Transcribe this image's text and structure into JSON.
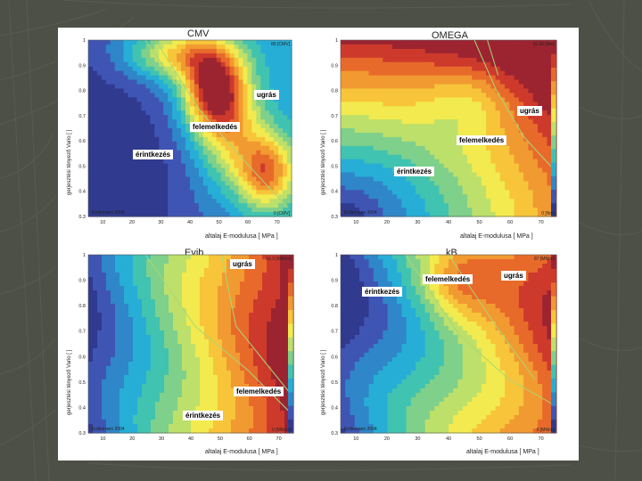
{
  "colors": {
    "scale": [
      "#303a8e",
      "#3f55b4",
      "#2f86c8",
      "#27aed6",
      "#40c3b0",
      "#7fd08a",
      "#bde06a",
      "#f2ea4e",
      "#f7c43a",
      "#f19a31",
      "#e86a2a",
      "#cd3a2c",
      "#9c2430"
    ]
  },
  "chart_data": [
    {
      "type": "heatmap",
      "title": "CMV",
      "xlabel": "altalaj E-modulusa  [ MPa ]",
      "ylabel": "gerjesztési tényező  Vario  [ ]",
      "x_ticks": [
        "10",
        "20",
        "30",
        "40",
        "50",
        "60",
        "70"
      ],
      "y_ticks": [
        "0.3",
        "0.4",
        "0.5",
        "0.6",
        "0.7",
        "0.8",
        "0.9",
        "1"
      ],
      "xlim": [
        5,
        75
      ],
      "ylim": [
        0.3,
        1.0
      ],
      "corner_top": "89 [CMV]",
      "corner_bottom": "0 [CMV]",
      "copyright": "Erdlemann 2004",
      "annotations": [
        "ugrás",
        "felemelkedés",
        "érintkezés"
      ],
      "pattern": "cmv"
    },
    {
      "type": "heatmap",
      "title": "OMEGA",
      "xlabel": "altalaj E-modulusa  [ MPa ]",
      "ylabel": "gerjesztési tényező  Vario  [ ]",
      "x_ticks": [
        "10",
        "20",
        "30",
        "40",
        "50",
        "60",
        "70"
      ],
      "y_ticks": [
        "0.3",
        "0.4",
        "0.5",
        "0.6",
        "0.7",
        "0.8",
        "0.9",
        "1"
      ],
      "xlim": [
        5,
        75
      ],
      "ylim": [
        0.3,
        1.0
      ],
      "corner_top": "16.00 [Nm]",
      "corner_bottom": "0 [Nm]",
      "copyright": "Erdlemann 2004",
      "annotations": [
        "ugrás",
        "felemelkedés",
        "érintkezés"
      ],
      "pattern": "omega"
    },
    {
      "type": "heatmap",
      "title": "Evib",
      "xlabel": "altalaj E-modulusa  [ MPa ]",
      "ylabel": "gerjesztési tényező  Vario  [ ]",
      "x_ticks": [
        "10",
        "20",
        "30",
        "40",
        "50",
        "60",
        "70"
      ],
      "y_ticks": [
        "0.3",
        "0.4",
        "0.5",
        "0.6",
        "0.7",
        "0.8",
        "0.9",
        "1"
      ],
      "xlim": [
        5,
        75
      ],
      "ylim": [
        0.3,
        1.0
      ],
      "corner_top": "16.3 [MN/m²]",
      "corner_bottom": "0 [MN/m²]",
      "copyright": "Erdlemann 2004",
      "annotations": [
        "ugrás",
        "felemelkedés",
        "érintkezés"
      ],
      "pattern": "evib"
    },
    {
      "type": "heatmap",
      "title": "kB",
      "xlabel": "altalaj E-modulusa  [ MPa ]",
      "ylabel": "gerjesztési tényező  Vario  [ ]",
      "x_ticks": [
        "10",
        "20",
        "30",
        "40",
        "50",
        "60",
        "70"
      ],
      "y_ticks": [
        "0.3",
        "0.4",
        "0.5",
        "0.6",
        "0.7",
        "0.8",
        "0.9",
        "1"
      ],
      "xlim": [
        5,
        75
      ],
      "ylim": [
        0.3,
        1.0
      ],
      "corner_top": "87 [MN/m]",
      "corner_bottom": "0 [MN/m]",
      "copyright": "Erdlemann 2004",
      "annotations": [
        "érintkezés",
        "felemelkedés",
        "ugrás"
      ],
      "pattern": "kb"
    }
  ]
}
